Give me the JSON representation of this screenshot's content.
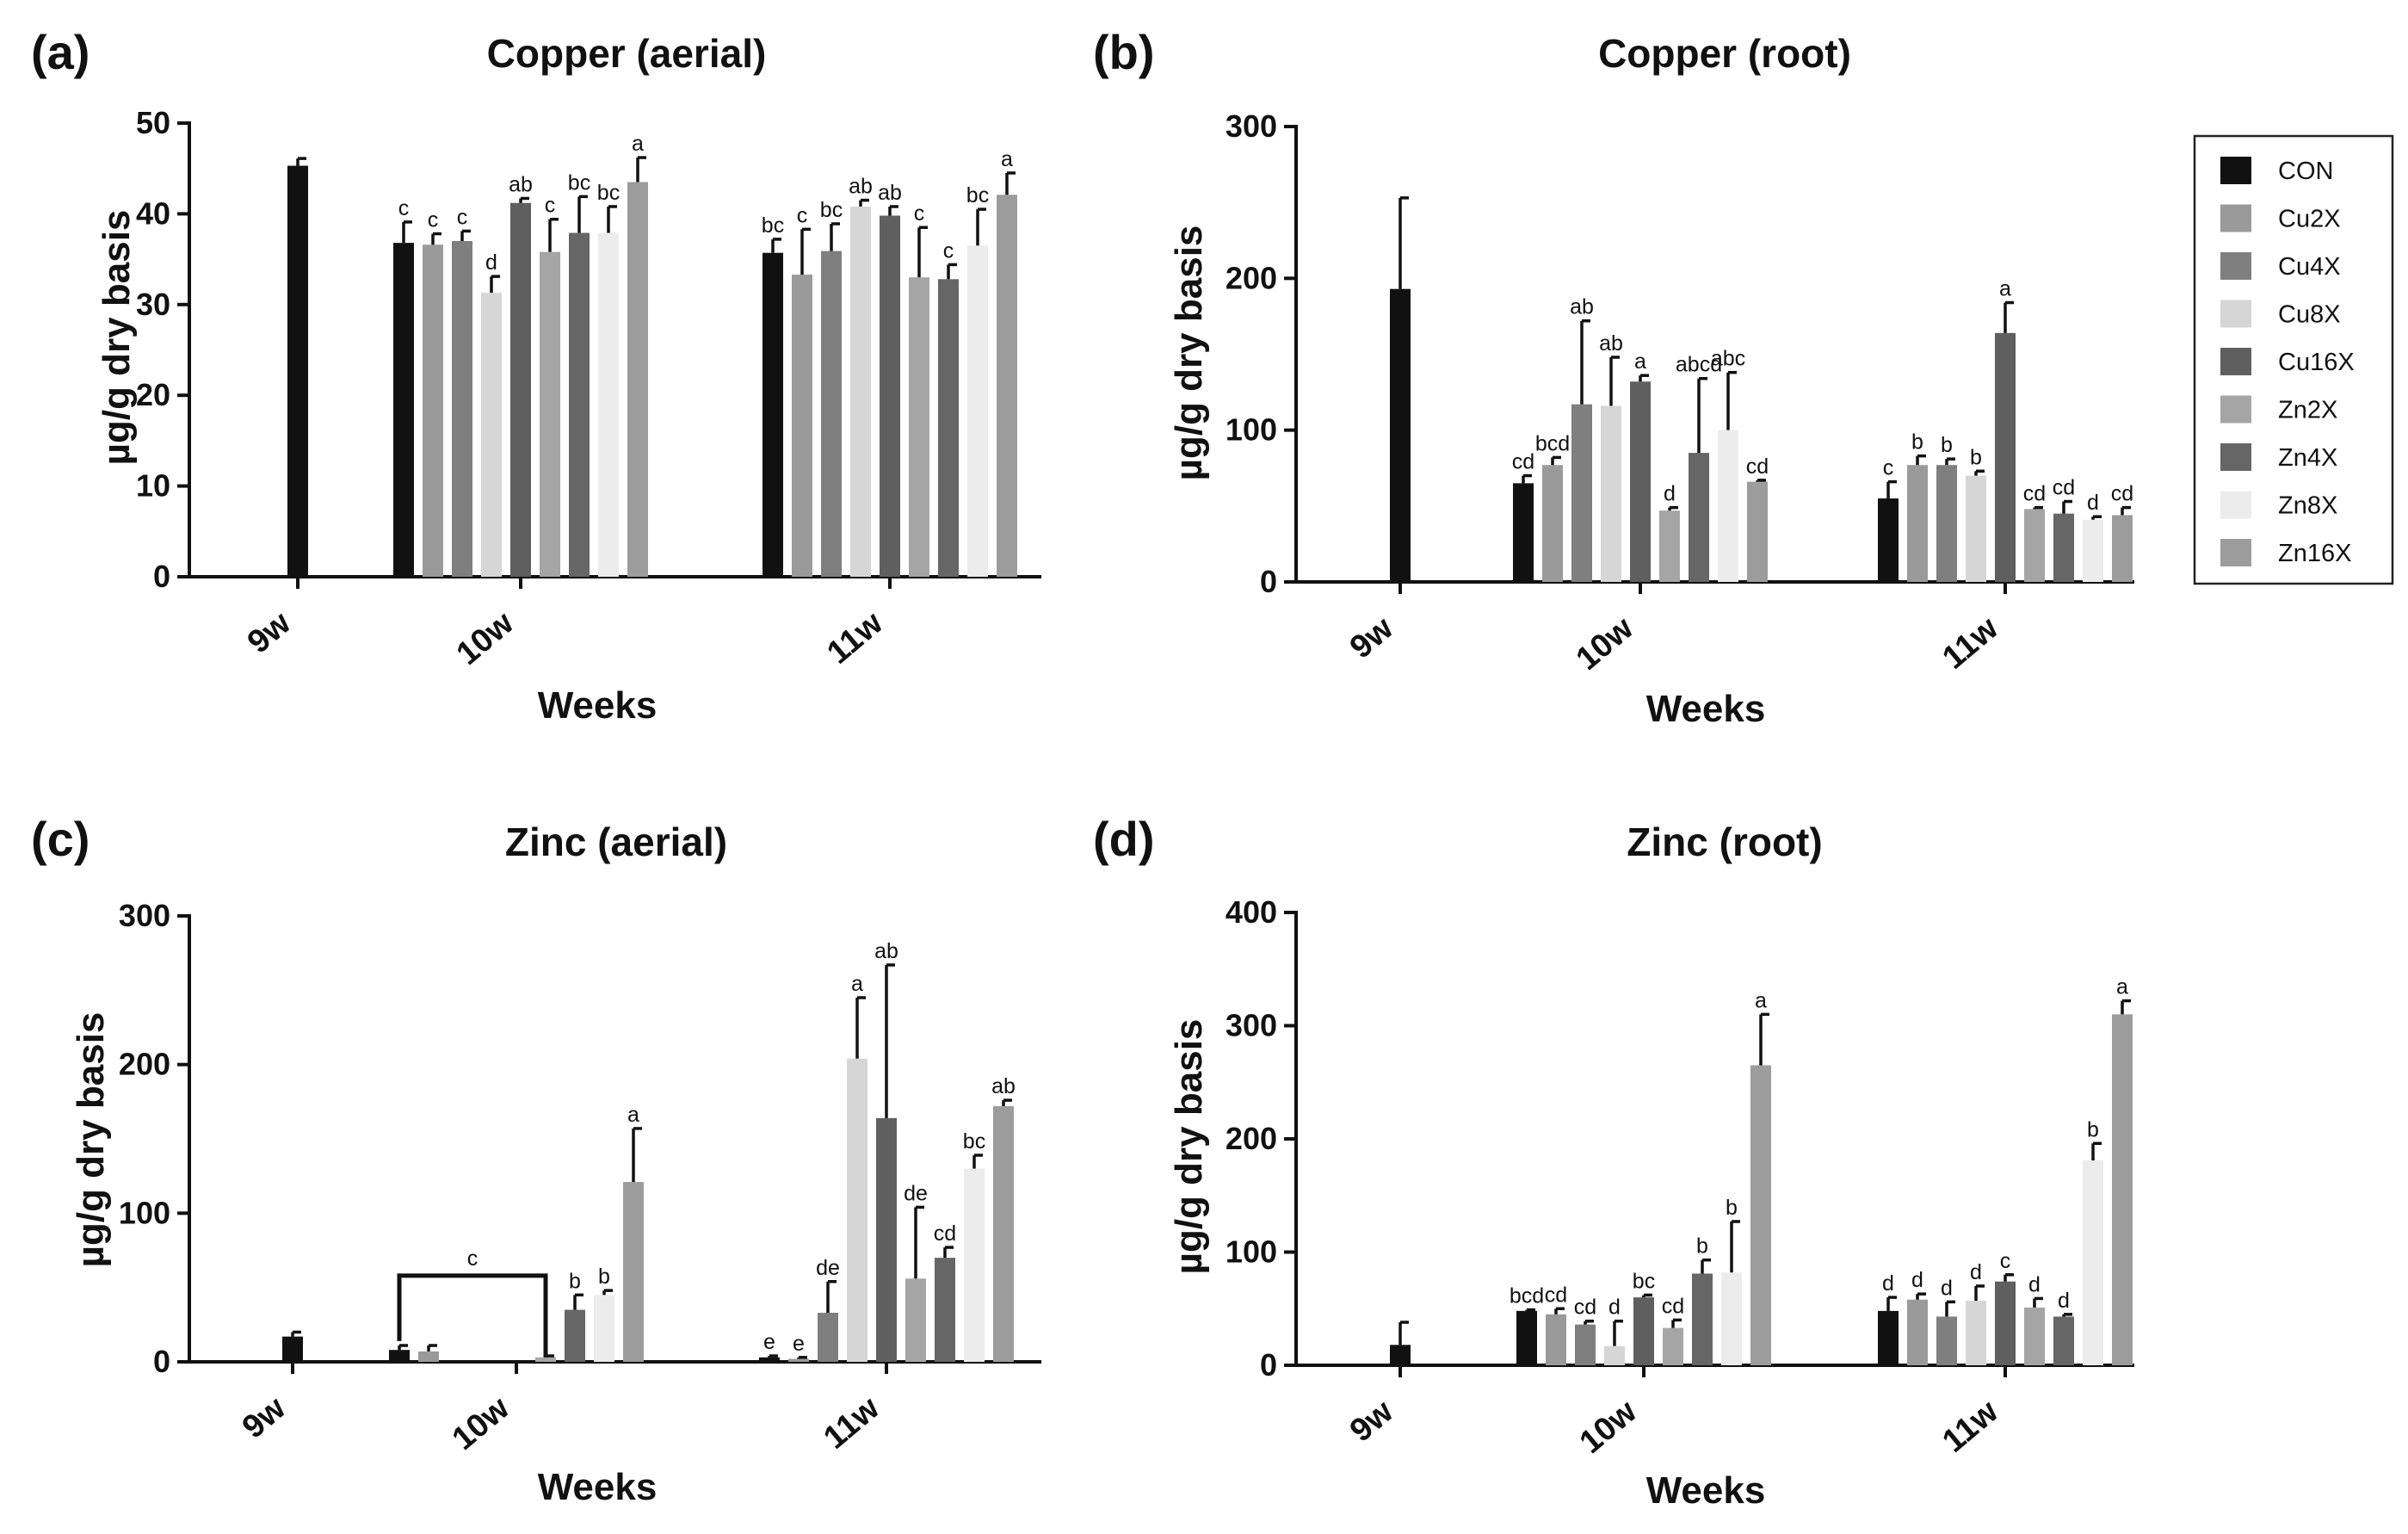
{
  "colors": {
    "CON": "#111111",
    "Cu2X": "#9a9a9a",
    "Cu4X": "#7f7f7f",
    "Cu8X": "#d6d6d6",
    "Cu16X": "#5f5f5f",
    "Zn2X": "#a5a5a5",
    "Zn4X": "#666666",
    "Zn8X": "#ececec",
    "Zn16X": "#9c9c9c"
  },
  "legend": {
    "entries": [
      "CON",
      "Cu2X",
      "Cu4X",
      "Cu8X",
      "Cu16X",
      "Zn2X",
      "Zn4X",
      "Zn8X",
      "Zn16X"
    ]
  },
  "chart_data": [
    {
      "id": "a",
      "panel_label": "(a)",
      "type": "bar",
      "title": "Copper (aerial)",
      "xlabel": "Weeks",
      "ylabel": "µg/g dry basis",
      "ylim": [
        0,
        50
      ],
      "yticks": [
        0,
        10,
        20,
        30,
        40,
        50
      ],
      "groups": [
        {
          "label": "9w",
          "bars": [
            {
              "s": "CON",
              "v": 45.3,
              "e": 0.8,
              "sig": ""
            }
          ]
        },
        {
          "label": "10w",
          "bars": [
            {
              "s": "CON",
              "v": 36.8,
              "e": 2.3,
              "sig": "c"
            },
            {
              "s": "Cu2X",
              "v": 36.6,
              "e": 1.2,
              "sig": "c"
            },
            {
              "s": "Cu4X",
              "v": 37.0,
              "e": 1.1,
              "sig": "c"
            },
            {
              "s": "Cu8X",
              "v": 31.3,
              "e": 1.8,
              "sig": "d"
            },
            {
              "s": "Cu16X",
              "v": 41.2,
              "e": 0.5,
              "sig": "ab"
            },
            {
              "s": "Zn2X",
              "v": 35.8,
              "e": 3.6,
              "sig": "c"
            },
            {
              "s": "Zn4X",
              "v": 37.9,
              "e": 4.0,
              "sig": "bc"
            },
            {
              "s": "Zn8X",
              "v": 37.9,
              "e": 2.9,
              "sig": "bc"
            },
            {
              "s": "Zn16X",
              "v": 43.5,
              "e": 2.7,
              "sig": "a"
            }
          ]
        },
        {
          "label": "11w",
          "bars": [
            {
              "s": "CON",
              "v": 35.7,
              "e": 1.5,
              "sig": "bc"
            },
            {
              "s": "Cu2X",
              "v": 33.3,
              "e": 5.0,
              "sig": "c"
            },
            {
              "s": "Cu4X",
              "v": 35.9,
              "e": 3.0,
              "sig": "bc"
            },
            {
              "s": "Cu8X",
              "v": 40.8,
              "e": 0.7,
              "sig": "ab"
            },
            {
              "s": "Cu16X",
              "v": 39.8,
              "e": 1.0,
              "sig": "ab"
            },
            {
              "s": "Zn2X",
              "v": 33.0,
              "e": 5.5,
              "sig": "c"
            },
            {
              "s": "Zn4X",
              "v": 32.8,
              "e": 1.6,
              "sig": "c"
            },
            {
              "s": "Zn8X",
              "v": 36.5,
              "e": 4.0,
              "sig": "bc"
            },
            {
              "s": "Zn16X",
              "v": 42.1,
              "e": 2.4,
              "sig": "a"
            }
          ]
        }
      ]
    },
    {
      "id": "b",
      "panel_label": "(b)",
      "type": "bar",
      "title": "Copper (root)",
      "xlabel": "Weeks",
      "ylabel": "µg/g dry basis",
      "ylim": [
        0,
        300
      ],
      "yticks": [
        0,
        100,
        200,
        300
      ],
      "groups": [
        {
          "label": "9w",
          "bars": [
            {
              "s": "CON",
              "v": 193,
              "e": 60,
              "sig": ""
            }
          ]
        },
        {
          "label": "10w",
          "bars": [
            {
              "s": "CON",
              "v": 65,
              "e": 5,
              "sig": "cd"
            },
            {
              "s": "Cu2X",
              "v": 77,
              "e": 5,
              "sig": "bcd"
            },
            {
              "s": "Cu4X",
              "v": 117,
              "e": 55,
              "sig": "ab"
            },
            {
              "s": "Cu8X",
              "v": 116,
              "e": 32,
              "sig": "ab"
            },
            {
              "s": "Cu16X",
              "v": 132,
              "e": 4,
              "sig": "a"
            },
            {
              "s": "Zn2X",
              "v": 47,
              "e": 2,
              "sig": "d"
            },
            {
              "s": "Zn4X",
              "v": 85,
              "e": 49,
              "sig": "abcd"
            },
            {
              "s": "Zn8X",
              "v": 100,
              "e": 38,
              "sig": "abc"
            },
            {
              "s": "Zn16X",
              "v": 66,
              "e": 1,
              "sig": "cd"
            }
          ]
        },
        {
          "label": "11w",
          "bars": [
            {
              "s": "CON",
              "v": 55,
              "e": 11,
              "sig": "c"
            },
            {
              "s": "Cu2X",
              "v": 77,
              "e": 6,
              "sig": "b"
            },
            {
              "s": "Cu4X",
              "v": 77,
              "e": 4,
              "sig": "b"
            },
            {
              "s": "Cu8X",
              "v": 70,
              "e": 3,
              "sig": "b"
            },
            {
              "s": "Cu16X",
              "v": 164,
              "e": 20,
              "sig": "a"
            },
            {
              "s": "Zn2X",
              "v": 48,
              "e": 1,
              "sig": "cd"
            },
            {
              "s": "Zn4X",
              "v": 45,
              "e": 8,
              "sig": "cd"
            },
            {
              "s": "Zn8X",
              "v": 41,
              "e": 2,
              "sig": "d"
            },
            {
              "s": "Zn16X",
              "v": 44,
              "e": 5,
              "sig": "cd"
            }
          ]
        }
      ]
    },
    {
      "id": "c",
      "panel_label": "(c)",
      "type": "bar",
      "title": "Zinc (aerial)",
      "xlabel": "Weeks",
      "ylabel": "µg/g dry basis",
      "ylim": [
        0,
        300
      ],
      "yticks": [
        0,
        100,
        200,
        300
      ],
      "bracket": {
        "group": "10w",
        "from": "CON",
        "to": "Zn2X",
        "sig": "c"
      },
      "groups": [
        {
          "label": "9w",
          "bars": [
            {
              "s": "CON",
              "v": 17,
              "e": 3,
              "sig": ""
            }
          ]
        },
        {
          "label": "10w",
          "bars": [
            {
              "s": "CON",
              "v": 8,
              "e": 3,
              "sig": ""
            },
            {
              "s": "Cu2X",
              "v": 7,
              "e": 4,
              "sig": ""
            },
            {
              "s": "Cu4X",
              "v": 0,
              "e": 0,
              "sig": ""
            },
            {
              "s": "Cu8X",
              "v": 0,
              "e": 0,
              "sig": ""
            },
            {
              "s": "Cu16X",
              "v": 0,
              "e": 0,
              "sig": ""
            },
            {
              "s": "Zn2X",
              "v": 3,
              "e": 1,
              "sig": ""
            },
            {
              "s": "Zn4X",
              "v": 35,
              "e": 10,
              "sig": "b"
            },
            {
              "s": "Zn8X",
              "v": 45,
              "e": 3,
              "sig": "b"
            },
            {
              "s": "Zn16X",
              "v": 121,
              "e": 36,
              "sig": "a"
            }
          ]
        },
        {
          "label": "11w",
          "bars": [
            {
              "s": "CON",
              "v": 3,
              "e": 1,
              "sig": "e"
            },
            {
              "s": "Cu2X",
              "v": 2,
              "e": 1,
              "sig": "e"
            },
            {
              "s": "Cu4X",
              "v": 33,
              "e": 21,
              "sig": "de"
            },
            {
              "s": "Cu8X",
              "v": 204,
              "e": 41,
              "sig": "a"
            },
            {
              "s": "Cu16X",
              "v": 164,
              "e": 103,
              "sig": "ab"
            },
            {
              "s": "Zn2X",
              "v": 56,
              "e": 48,
              "sig": "de"
            },
            {
              "s": "Zn4X",
              "v": 70,
              "e": 7,
              "sig": "cd"
            },
            {
              "s": "Zn8X",
              "v": 130,
              "e": 9,
              "sig": "bc"
            },
            {
              "s": "Zn16X",
              "v": 172,
              "e": 4,
              "sig": "ab"
            }
          ]
        }
      ]
    },
    {
      "id": "d",
      "panel_label": "(d)",
      "type": "bar",
      "title": "Zinc (root)",
      "xlabel": "Weeks",
      "ylabel": "µg/g dry basis",
      "ylim": [
        0,
        400
      ],
      "yticks": [
        0,
        100,
        200,
        300,
        400
      ],
      "groups": [
        {
          "label": "9w",
          "bars": [
            {
              "s": "CON",
              "v": 18,
              "e": 20,
              "sig": ""
            }
          ]
        },
        {
          "label": "10w",
          "bars": [
            {
              "s": "CON",
              "v": 48,
              "e": 1,
              "sig": "bcd"
            },
            {
              "s": "Cu2X",
              "v": 45,
              "e": 5,
              "sig": "cd"
            },
            {
              "s": "Cu4X",
              "v": 36,
              "e": 3,
              "sig": "cd"
            },
            {
              "s": "Cu8X",
              "v": 17,
              "e": 22,
              "sig": "d"
            },
            {
              "s": "Cu16X",
              "v": 60,
              "e": 2,
              "sig": "bc"
            },
            {
              "s": "Zn2X",
              "v": 33,
              "e": 7,
              "sig": "cd"
            },
            {
              "s": "Zn4X",
              "v": 81,
              "e": 12,
              "sig": "b"
            },
            {
              "s": "Zn8X",
              "v": 82,
              "e": 45,
              "sig": "b"
            },
            {
              "s": "Zn16X",
              "v": 265,
              "e": 45,
              "sig": "a"
            }
          ]
        },
        {
          "label": "11w",
          "bars": [
            {
              "s": "CON",
              "v": 48,
              "e": 12,
              "sig": "d"
            },
            {
              "s": "Cu2X",
              "v": 58,
              "e": 5,
              "sig": "d"
            },
            {
              "s": "Cu4X",
              "v": 43,
              "e": 13,
              "sig": "d"
            },
            {
              "s": "Cu8X",
              "v": 57,
              "e": 13,
              "sig": "d"
            },
            {
              "s": "Cu16X",
              "v": 74,
              "e": 6,
              "sig": "c"
            },
            {
              "s": "Zn2X",
              "v": 51,
              "e": 8,
              "sig": "d"
            },
            {
              "s": "Zn4X",
              "v": 43,
              "e": 2,
              "sig": "d"
            },
            {
              "s": "Zn8X",
              "v": 181,
              "e": 15,
              "sig": "b"
            },
            {
              "s": "Zn16X",
              "v": 310,
              "e": 12,
              "sig": "a"
            }
          ]
        }
      ]
    }
  ]
}
